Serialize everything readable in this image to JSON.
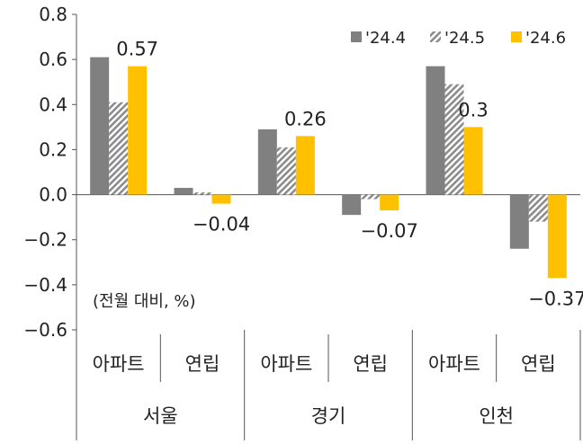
{
  "chart_data": {
    "type": "bar",
    "unit_note": "(전월 대비, %)",
    "regions": [
      {
        "name": "서울",
        "types": [
          "아파트",
          "연립"
        ]
      },
      {
        "name": "경기",
        "types": [
          "아파트",
          "연립"
        ]
      },
      {
        "name": "인천",
        "types": [
          "아파트",
          "연립"
        ]
      }
    ],
    "categories": [
      "서울 아파트",
      "서울 연립",
      "경기 아파트",
      "경기 연립",
      "인천 아파트",
      "인천 연립"
    ],
    "series": [
      {
        "name": "'24.4",
        "color": "#808080",
        "pattern": "solid",
        "values": [
          0.61,
          0.03,
          0.29,
          -0.09,
          0.57,
          -0.24
        ]
      },
      {
        "name": "'24.5",
        "color": "#8c8c8c",
        "pattern": "hatch",
        "values": [
          0.41,
          0.01,
          0.21,
          -0.02,
          0.49,
          -0.12
        ]
      },
      {
        "name": "'24.6",
        "color": "#ffc000",
        "pattern": "solid",
        "values": [
          0.57,
          -0.04,
          0.26,
          -0.07,
          0.3,
          -0.37
        ]
      }
    ],
    "data_labels": [
      {
        "series": 2,
        "index": 0,
        "text": "0.57"
      },
      {
        "series": 2,
        "index": 1,
        "text": "-0.04"
      },
      {
        "series": 2,
        "index": 2,
        "text": "0.26"
      },
      {
        "series": 2,
        "index": 3,
        "text": "-0.07"
      },
      {
        "series": 2,
        "index": 4,
        "text": "0.3"
      },
      {
        "series": 2,
        "index": 5,
        "text": "-0.37"
      }
    ],
    "yticks": [
      "0.8",
      "0.6",
      "0.4",
      "0.2",
      "0.0",
      "-0.2",
      "-0.4",
      "-0.6"
    ],
    "ylim": [
      -0.6,
      0.8
    ],
    "legend_position": "top-right",
    "grid": false
  }
}
